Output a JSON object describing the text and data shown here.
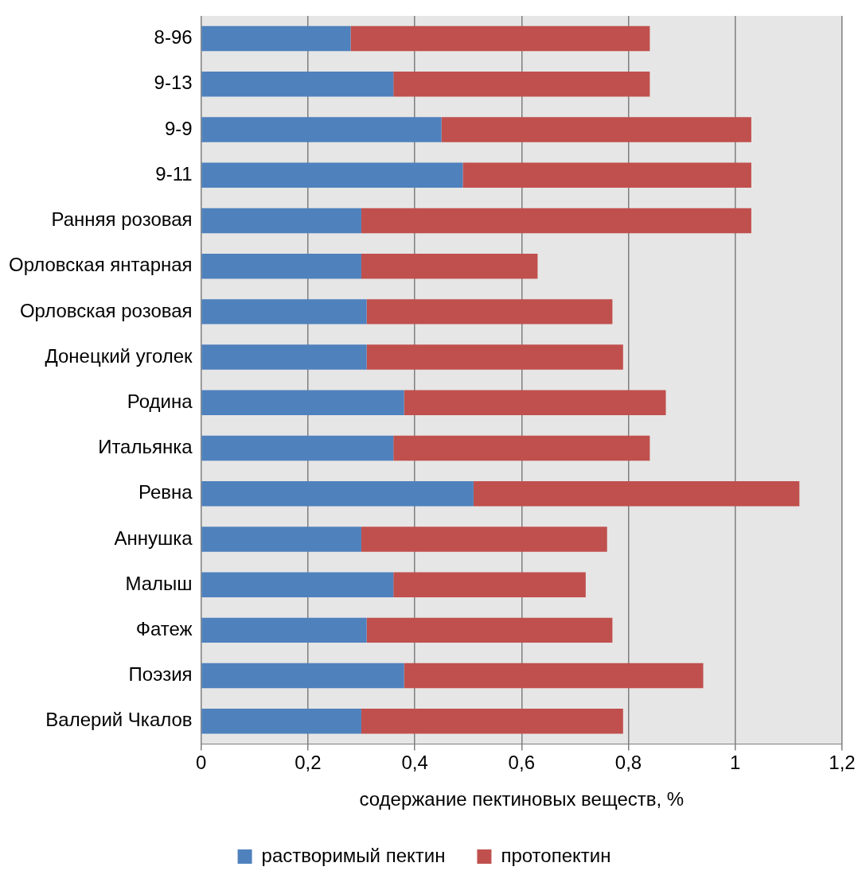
{
  "chart_data": {
    "type": "bar",
    "orientation": "horizontal",
    "stacked": true,
    "categories": [
      "8-96",
      "9-13",
      "9-9",
      "9-11",
      "Ранняя розовая",
      "Орловская янтарная",
      "Орловская розовая",
      "Донецкий уголек",
      "Родина",
      "Итальянка",
      "Ревна",
      "Аннушка",
      "Малыш",
      "Фатеж",
      "Поэзия",
      "Валерий Чкалов"
    ],
    "series": [
      {
        "name": "растворимый пектин",
        "color": "#4f81bd",
        "values": [
          0.28,
          0.36,
          0.45,
          0.49,
          0.3,
          0.3,
          0.31,
          0.31,
          0.38,
          0.36,
          0.51,
          0.3,
          0.36,
          0.31,
          0.38,
          0.3
        ]
      },
      {
        "name": "протопектин",
        "color": "#c0504d",
        "values": [
          0.56,
          0.48,
          0.58,
          0.54,
          0.73,
          0.33,
          0.46,
          0.48,
          0.49,
          0.48,
          0.61,
          0.46,
          0.36,
          0.46,
          0.56,
          0.49
        ]
      }
    ],
    "xlabel": "содержание пектиновых веществ, %",
    "xlim": [
      0,
      1.2
    ],
    "xticks": [
      0,
      {
        "value": 0.2,
        "label": "0,2"
      },
      {
        "value": 0.4,
        "label": "0,4"
      },
      {
        "value": 0.6,
        "label": "0,6"
      },
      {
        "value": 0.8,
        "label": "0,8"
      },
      1,
      {
        "value": 1.2,
        "label": "1,2"
      }
    ],
    "grid": "x",
    "legend": "bottom"
  }
}
